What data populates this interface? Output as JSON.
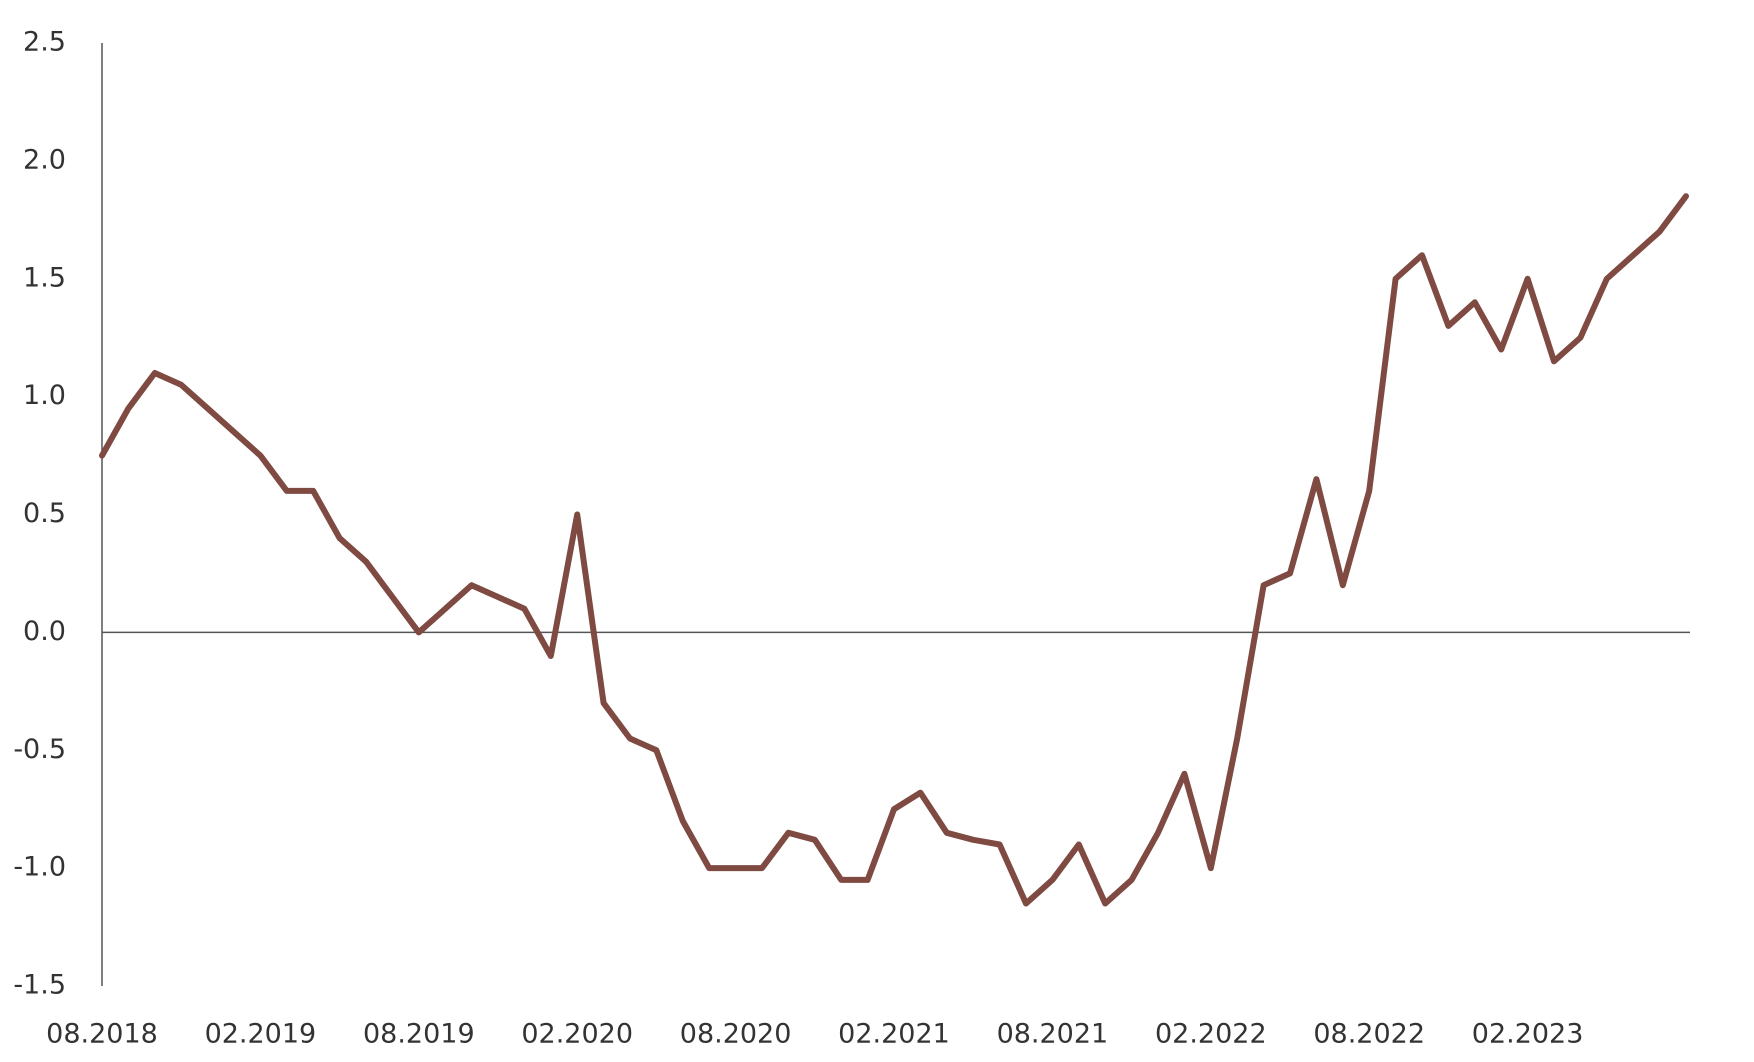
{
  "chart_data": {
    "type": "line",
    "categories": [
      "08.2018",
      null,
      null,
      null,
      null,
      null,
      "02.2019",
      null,
      null,
      null,
      null,
      null,
      "08.2019",
      null,
      null,
      null,
      null,
      null,
      "02.2020",
      null,
      null,
      null,
      null,
      null,
      "08.2020",
      null,
      null,
      null,
      null,
      null,
      "02.2021",
      null,
      null,
      null,
      null,
      null,
      "08.2021",
      null,
      null,
      null,
      null,
      null,
      "02.2022",
      null,
      null,
      null,
      null,
      null,
      "08.2022",
      null,
      null,
      null,
      null,
      null,
      "02.2023",
      null,
      null,
      null,
      null,
      null,
      null
    ],
    "values": [
      0.75,
      0.95,
      1.1,
      1.05,
      0.95,
      0.85,
      0.75,
      0.6,
      0.6,
      0.4,
      0.3,
      0.15,
      0.0,
      0.1,
      0.2,
      0.15,
      0.1,
      -0.1,
      0.5,
      -0.3,
      -0.45,
      -0.5,
      -0.8,
      -1.0,
      -1.0,
      -1.0,
      -0.85,
      -0.88,
      -1.05,
      -1.05,
      -0.75,
      -0.68,
      -0.85,
      -0.88,
      -0.9,
      -1.15,
      -1.05,
      -0.9,
      -1.15,
      -1.05,
      -0.85,
      -0.6,
      -1.0,
      -0.45,
      0.2,
      0.25,
      0.65,
      0.2,
      0.6,
      1.5,
      1.6,
      1.3,
      1.4,
      1.2,
      1.5,
      1.15,
      1.25,
      1.5,
      1.6,
      1.7,
      1.85
    ],
    "color": "#7f4a42",
    "ylim": [
      -1.5,
      2.5
    ],
    "yticks": [
      2.5,
      {
        "value": 2.0,
        "label": "2.0"
      },
      1.5,
      {
        "value": 1.0,
        "label": "1.0"
      },
      0.5,
      {
        "value": 0.0,
        "label": "0.0"
      },
      -0.5,
      {
        "value": -1.0,
        "label": "-1.0"
      },
      -1.5
    ],
    "zero_line": true
  }
}
